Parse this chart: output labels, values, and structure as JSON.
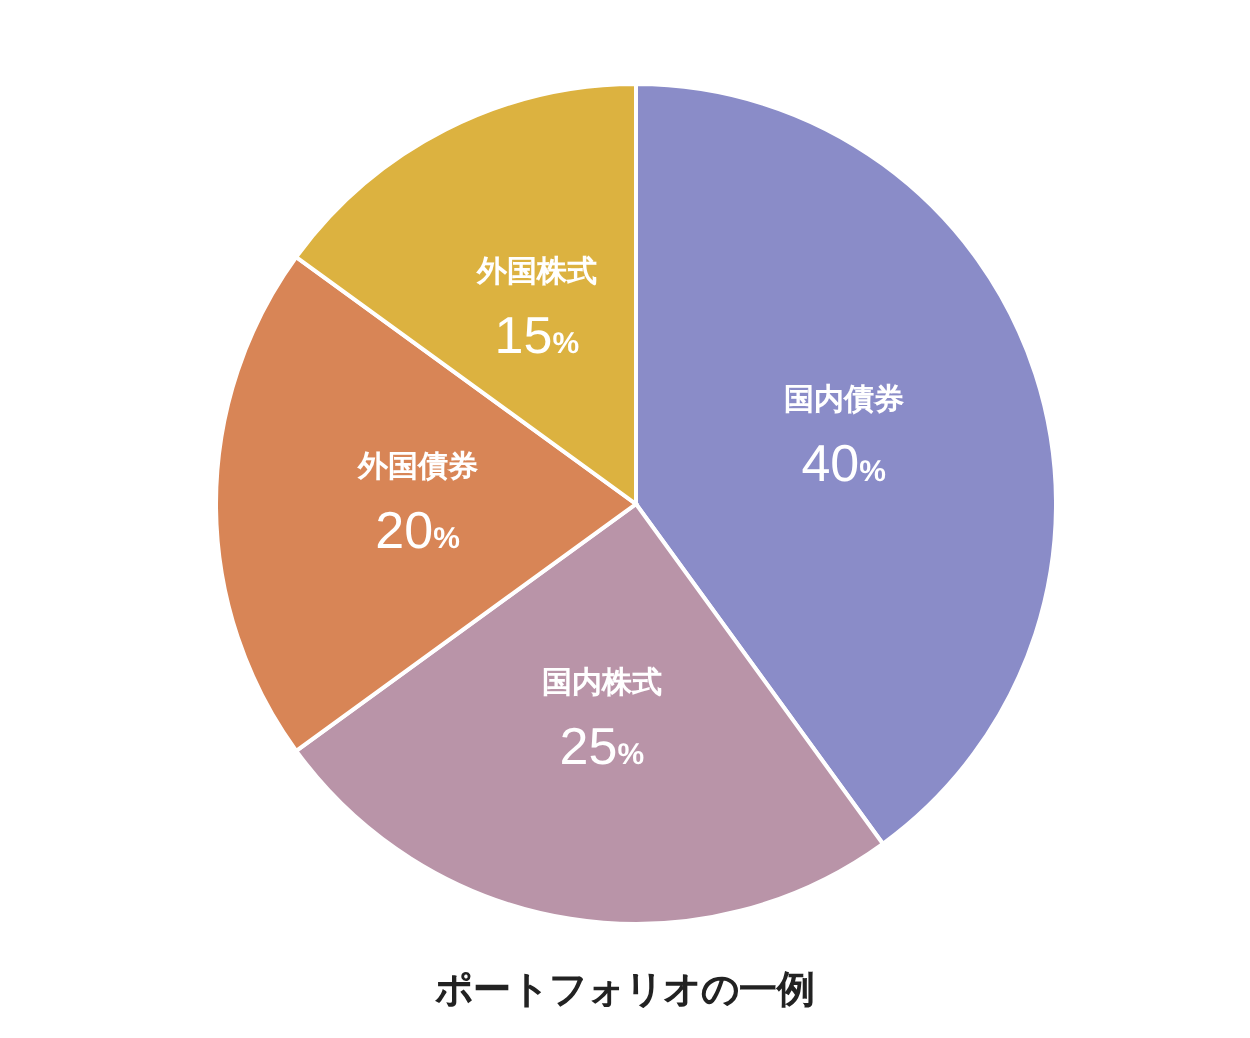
{
  "chart_data": {
    "type": "pie",
    "title": "ポートフォリオの一例",
    "categories": [
      "国内債券",
      "国内株式",
      "外国債券",
      "外国株式"
    ],
    "values": [
      40,
      25,
      20,
      15
    ],
    "colors": [
      "#8a8cc8",
      "#b994a8",
      "#d88556",
      "#dcb240"
    ],
    "value_labels": [
      "40%",
      "25%",
      "20%",
      "15%"
    ]
  }
}
